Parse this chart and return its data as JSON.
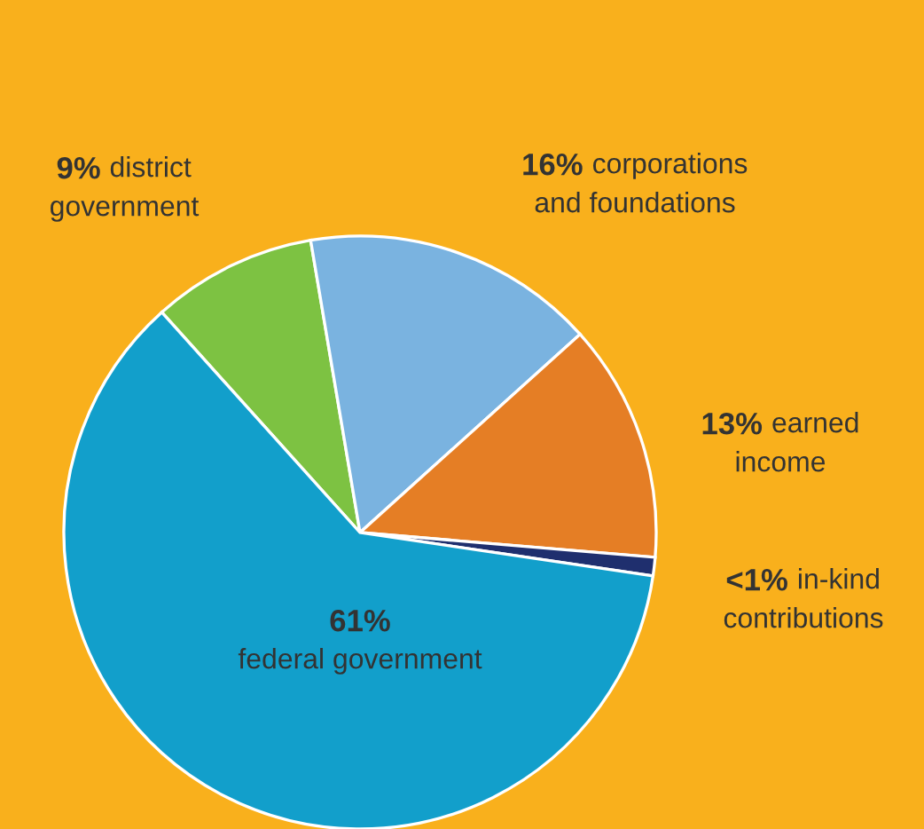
{
  "chart_data": {
    "type": "pie",
    "categories": [
      "district\ngovernment",
      "corporations\nand foundations",
      "earned\nincome",
      "in-kind\ncontributions",
      "federal government"
    ],
    "values": [
      9,
      16,
      13,
      1,
      61
    ],
    "value_labels": [
      "9%",
      "16%",
      "13%",
      "<1%",
      "61%"
    ],
    "colors": [
      "#7dc242",
      "#7ab3e0",
      "#e57e25",
      "#1f2f6e",
      "#129fcb"
    ]
  }
}
